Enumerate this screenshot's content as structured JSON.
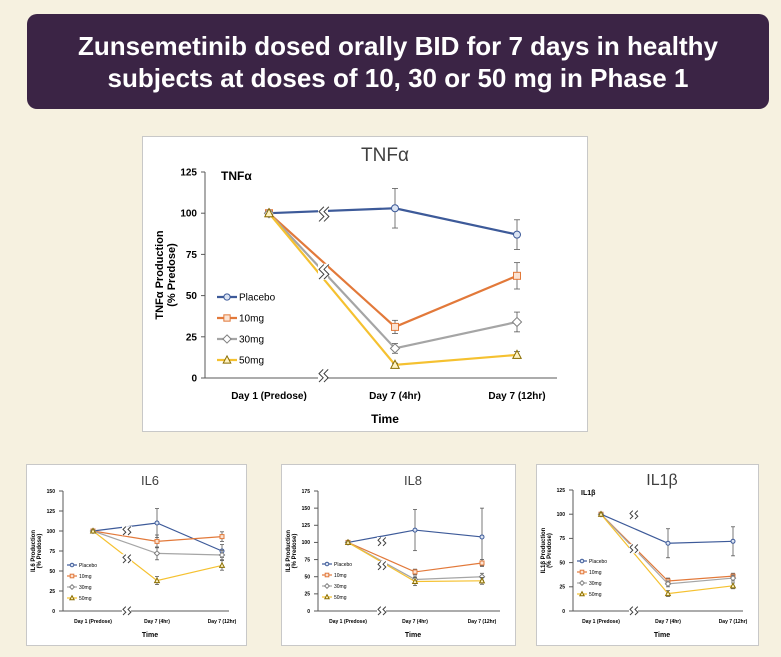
{
  "banner": {
    "title": "Zunsemetinib dosed orally BID for 7 days in healthy subjects at doses of 10, 30 or 50 mg in Phase 1"
  },
  "colors": {
    "Placebo": "#3d5a99",
    "10mg": "#e2793a",
    "30mg": "#a5a5a5",
    "50mg": "#f5c130",
    "banner": "#3b2445"
  },
  "chart_data": [
    {
      "id": "tnfa",
      "type": "line",
      "title": "TNFα",
      "inner_label": "TNFα",
      "ylabel": [
        "TNFα Production",
        "(% Predose)"
      ],
      "xlabel": "Time",
      "ylim": [
        0,
        125
      ],
      "yticks": [
        "0",
        "25",
        "50",
        "75",
        "100",
        "125"
      ],
      "categories": [
        "Day 1 (Predose)",
        "Day 7 (4hr)",
        "Day 7 (12hr)"
      ],
      "legend": [
        "Placebo",
        "10mg",
        "30mg",
        "50mg"
      ],
      "series": [
        {
          "name": "Placebo",
          "values": [
            100,
            103,
            87
          ],
          "errors": [
            0,
            12,
            9
          ]
        },
        {
          "name": "10mg",
          "values": [
            100,
            31,
            62
          ],
          "errors": [
            0,
            4,
            8
          ]
        },
        {
          "name": "30mg",
          "values": [
            100,
            18,
            34
          ],
          "errors": [
            0,
            3,
            6
          ]
        },
        {
          "name": "50mg",
          "values": [
            100,
            8,
            14
          ],
          "errors": [
            0,
            1,
            2
          ]
        }
      ]
    },
    {
      "id": "il6",
      "type": "line",
      "title": "IL6",
      "inner_label": "",
      "ylabel": [
        "IL6 Production",
        "(% Predose)"
      ],
      "xlabel": "Time",
      "ylim": [
        0,
        150
      ],
      "yticks": [
        "0",
        "25",
        "50",
        "75",
        "100",
        "125",
        "150"
      ],
      "categories": [
        "Day 1 (Predose)",
        "Day 7 (4hr)",
        "Day 7 (12hr)"
      ],
      "legend": [
        "Placebo",
        "10mg",
        "30mg",
        "50mg"
      ],
      "series": [
        {
          "name": "Placebo",
          "values": [
            100,
            110,
            75
          ],
          "errors": [
            0,
            18,
            8
          ]
        },
        {
          "name": "10mg",
          "values": [
            100,
            87,
            93
          ],
          "errors": [
            0,
            8,
            6
          ]
        },
        {
          "name": "30mg",
          "values": [
            100,
            72,
            70
          ],
          "errors": [
            0,
            8,
            6
          ]
        },
        {
          "name": "50mg",
          "values": [
            100,
            38,
            57
          ],
          "errors": [
            0,
            5,
            6
          ]
        }
      ]
    },
    {
      "id": "il8",
      "type": "line",
      "title": "IL8",
      "inner_label": "",
      "ylabel": [
        "IL8 Production",
        "(% Predose)"
      ],
      "xlabel": "Time",
      "ylim": [
        0,
        175
      ],
      "yticks": [
        "0",
        "25",
        "50",
        "75",
        "100",
        "125",
        "150",
        "175"
      ],
      "categories": [
        "Day 1 (Predose)",
        "Day 7 (4hr)",
        "Day 7 (12hr)"
      ],
      "legend": [
        "Placebo",
        "10mg",
        "30mg",
        "50mg"
      ],
      "series": [
        {
          "name": "Placebo",
          "values": [
            100,
            118,
            108
          ],
          "errors": [
            0,
            30,
            42
          ]
        },
        {
          "name": "10mg",
          "values": [
            100,
            57,
            70
          ],
          "errors": [
            0,
            4,
            5
          ]
        },
        {
          "name": "30mg",
          "values": [
            100,
            46,
            50
          ],
          "errors": [
            0,
            5,
            5
          ]
        },
        {
          "name": "50mg",
          "values": [
            100,
            43,
            44
          ],
          "errors": [
            0,
            6,
            5
          ]
        }
      ]
    },
    {
      "id": "il1b",
      "type": "line",
      "title": "IL1β",
      "inner_label": "IL1β",
      "ylabel": [
        "IL1β Production",
        "(% Predose)"
      ],
      "xlabel": "Time",
      "ylim": [
        0,
        125
      ],
      "yticks": [
        "0",
        "25",
        "50",
        "75",
        "100",
        "125"
      ],
      "categories": [
        "Day 1 (Predose)",
        "Day 7 (4hr)",
        "Day 7 (12hr)"
      ],
      "legend": [
        "Placebo",
        "10mg",
        "30mg",
        "50mg"
      ],
      "series": [
        {
          "name": "Placebo",
          "values": [
            100,
            70,
            72
          ],
          "errors": [
            0,
            15,
            15
          ]
        },
        {
          "name": "10mg",
          "values": [
            100,
            31,
            36
          ],
          "errors": [
            0,
            3,
            3
          ]
        },
        {
          "name": "30mg",
          "values": [
            100,
            28,
            34
          ],
          "errors": [
            0,
            3,
            3
          ]
        },
        {
          "name": "50mg",
          "values": [
            100,
            18,
            26
          ],
          "errors": [
            0,
            3,
            3
          ]
        }
      ]
    }
  ]
}
